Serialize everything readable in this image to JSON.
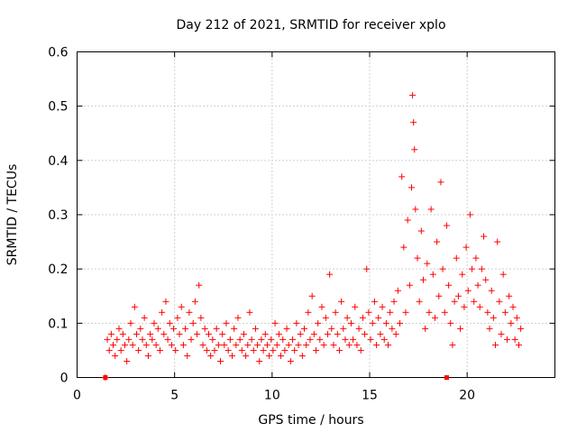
{
  "chart_data": {
    "type": "scatter",
    "title": "Day 212 of 2021, SRMTID for receiver xplo",
    "xlabel": "GPS time / hours",
    "ylabel": "SRMTID / TECUs",
    "xlim": [
      0,
      24.5
    ],
    "ylim": [
      0,
      0.6
    ],
    "xticks": [
      0,
      5,
      10,
      15,
      20
    ],
    "yticks": [
      0,
      0.1,
      0.2,
      0.3,
      0.4,
      0.5,
      0.6
    ],
    "xtick_labels": [
      "0",
      "5",
      "10",
      "15",
      "20"
    ],
    "ytick_labels": [
      "0",
      "0.1",
      "0.2",
      "0.3",
      "0.4",
      "0.5",
      "0.6"
    ],
    "grid": true,
    "marker": "+",
    "series": [
      {
        "name": "SRMTID",
        "color": "#ff0000",
        "points": [
          [
            1.45,
            0.0
          ],
          [
            1.55,
            0.07
          ],
          [
            1.65,
            0.05
          ],
          [
            1.75,
            0.08
          ],
          [
            1.85,
            0.06
          ],
          [
            1.95,
            0.04
          ],
          [
            2.05,
            0.07
          ],
          [
            2.15,
            0.09
          ],
          [
            2.25,
            0.05
          ],
          [
            2.35,
            0.08
          ],
          [
            2.45,
            0.06
          ],
          [
            2.55,
            0.03
          ],
          [
            2.65,
            0.07
          ],
          [
            2.75,
            0.1
          ],
          [
            2.85,
            0.06
          ],
          [
            2.95,
            0.13
          ],
          [
            3.05,
            0.08
          ],
          [
            3.15,
            0.05
          ],
          [
            3.25,
            0.09
          ],
          [
            3.35,
            0.07
          ],
          [
            3.45,
            0.11
          ],
          [
            3.55,
            0.06
          ],
          [
            3.65,
            0.04
          ],
          [
            3.75,
            0.08
          ],
          [
            3.85,
            0.07
          ],
          [
            3.95,
            0.1
          ],
          [
            4.05,
            0.06
          ],
          [
            4.15,
            0.09
          ],
          [
            4.25,
            0.05
          ],
          [
            4.35,
            0.12
          ],
          [
            4.45,
            0.08
          ],
          [
            4.55,
            0.14
          ],
          [
            4.65,
            0.07
          ],
          [
            4.75,
            0.1
          ],
          [
            4.85,
            0.06
          ],
          [
            4.95,
            0.09
          ],
          [
            5.05,
            0.05
          ],
          [
            5.15,
            0.11
          ],
          [
            5.25,
            0.08
          ],
          [
            5.35,
            0.13
          ],
          [
            5.45,
            0.06
          ],
          [
            5.55,
            0.09
          ],
          [
            5.65,
            0.04
          ],
          [
            5.75,
            0.12
          ],
          [
            5.85,
            0.07
          ],
          [
            5.95,
            0.1
          ],
          [
            6.05,
            0.14
          ],
          [
            6.15,
            0.08
          ],
          [
            6.25,
            0.17
          ],
          [
            6.35,
            0.11
          ],
          [
            6.45,
            0.06
          ],
          [
            6.55,
            0.09
          ],
          [
            6.65,
            0.05
          ],
          [
            6.75,
            0.08
          ],
          [
            6.85,
            0.04
          ],
          [
            6.95,
            0.07
          ],
          [
            7.05,
            0.05
          ],
          [
            7.15,
            0.09
          ],
          [
            7.25,
            0.06
          ],
          [
            7.35,
            0.03
          ],
          [
            7.45,
            0.08
          ],
          [
            7.55,
            0.06
          ],
          [
            7.65,
            0.1
          ],
          [
            7.75,
            0.05
          ],
          [
            7.85,
            0.07
          ],
          [
            7.95,
            0.04
          ],
          [
            8.05,
            0.09
          ],
          [
            8.15,
            0.06
          ],
          [
            8.25,
            0.11
          ],
          [
            8.35,
            0.07
          ],
          [
            8.45,
            0.05
          ],
          [
            8.55,
            0.08
          ],
          [
            8.65,
            0.04
          ],
          [
            8.75,
            0.06
          ],
          [
            8.85,
            0.12
          ],
          [
            8.95,
            0.07
          ],
          [
            9.05,
            0.05
          ],
          [
            9.15,
            0.09
          ],
          [
            9.25,
            0.06
          ],
          [
            9.35,
            0.03
          ],
          [
            9.45,
            0.07
          ],
          [
            9.55,
            0.05
          ],
          [
            9.65,
            0.08
          ],
          [
            9.75,
            0.06
          ],
          [
            9.85,
            0.04
          ],
          [
            9.95,
            0.07
          ],
          [
            10.05,
            0.05
          ],
          [
            10.15,
            0.1
          ],
          [
            10.25,
            0.06
          ],
          [
            10.35,
            0.08
          ],
          [
            10.45,
            0.04
          ],
          [
            10.55,
            0.07
          ],
          [
            10.65,
            0.05
          ],
          [
            10.75,
            0.09
          ],
          [
            10.85,
            0.06
          ],
          [
            10.95,
            0.03
          ],
          [
            11.05,
            0.07
          ],
          [
            11.15,
            0.05
          ],
          [
            11.25,
            0.1
          ],
          [
            11.35,
            0.06
          ],
          [
            11.45,
            0.08
          ],
          [
            11.55,
            0.04
          ],
          [
            11.65,
            0.09
          ],
          [
            11.75,
            0.06
          ],
          [
            11.85,
            0.12
          ],
          [
            11.95,
            0.07
          ],
          [
            12.05,
            0.15
          ],
          [
            12.15,
            0.08
          ],
          [
            12.25,
            0.05
          ],
          [
            12.35,
            0.1
          ],
          [
            12.45,
            0.07
          ],
          [
            12.55,
            0.13
          ],
          [
            12.65,
            0.06
          ],
          [
            12.75,
            0.11
          ],
          [
            12.85,
            0.08
          ],
          [
            12.95,
            0.19
          ],
          [
            13.05,
            0.09
          ],
          [
            13.15,
            0.06
          ],
          [
            13.25,
            0.12
          ],
          [
            13.35,
            0.08
          ],
          [
            13.45,
            0.05
          ],
          [
            13.55,
            0.14
          ],
          [
            13.65,
            0.09
          ],
          [
            13.75,
            0.07
          ],
          [
            13.85,
            0.11
          ],
          [
            13.95,
            0.06
          ],
          [
            14.05,
            0.1
          ],
          [
            14.15,
            0.07
          ],
          [
            14.25,
            0.13
          ],
          [
            14.35,
            0.06
          ],
          [
            14.45,
            0.09
          ],
          [
            14.55,
            0.05
          ],
          [
            14.65,
            0.11
          ],
          [
            14.75,
            0.08
          ],
          [
            14.85,
            0.2
          ],
          [
            14.95,
            0.12
          ],
          [
            15.05,
            0.07
          ],
          [
            15.15,
            0.1
          ],
          [
            15.25,
            0.14
          ],
          [
            15.35,
            0.06
          ],
          [
            15.45,
            0.11
          ],
          [
            15.55,
            0.08
          ],
          [
            15.65,
            0.13
          ],
          [
            15.75,
            0.07
          ],
          [
            15.85,
            0.1
          ],
          [
            15.95,
            0.06
          ],
          [
            16.05,
            0.12
          ],
          [
            16.15,
            0.09
          ],
          [
            16.25,
            0.14
          ],
          [
            16.35,
            0.08
          ],
          [
            16.45,
            0.16
          ],
          [
            16.55,
            0.1
          ],
          [
            16.65,
            0.37
          ],
          [
            16.75,
            0.24
          ],
          [
            16.85,
            0.12
          ],
          [
            16.95,
            0.29
          ],
          [
            17.05,
            0.17
          ],
          [
            17.15,
            0.35
          ],
          [
            17.2,
            0.52
          ],
          [
            17.25,
            0.47
          ],
          [
            17.3,
            0.42
          ],
          [
            17.35,
            0.31
          ],
          [
            17.45,
            0.22
          ],
          [
            17.55,
            0.14
          ],
          [
            17.65,
            0.27
          ],
          [
            17.75,
            0.18
          ],
          [
            17.85,
            0.09
          ],
          [
            17.95,
            0.21
          ],
          [
            18.05,
            0.12
          ],
          [
            18.15,
            0.31
          ],
          [
            18.25,
            0.19
          ],
          [
            18.35,
            0.11
          ],
          [
            18.45,
            0.25
          ],
          [
            18.55,
            0.15
          ],
          [
            18.65,
            0.36
          ],
          [
            18.75,
            0.2
          ],
          [
            18.85,
            0.12
          ],
          [
            18.95,
            0.28
          ],
          [
            19.05,
            0.17
          ],
          [
            19.15,
            0.1
          ],
          [
            19.25,
            0.06
          ],
          [
            19.35,
            0.14
          ],
          [
            19.45,
            0.22
          ],
          [
            19.55,
            0.15
          ],
          [
            19.65,
            0.09
          ],
          [
            19.75,
            0.19
          ],
          [
            19.85,
            0.13
          ],
          [
            19.95,
            0.24
          ],
          [
            20.05,
            0.16
          ],
          [
            20.15,
            0.3
          ],
          [
            20.25,
            0.2
          ],
          [
            20.35,
            0.14
          ],
          [
            20.45,
            0.22
          ],
          [
            20.55,
            0.17
          ],
          [
            20.65,
            0.13
          ],
          [
            20.75,
            0.2
          ],
          [
            20.85,
            0.26
          ],
          [
            20.95,
            0.18
          ],
          [
            21.05,
            0.12
          ],
          [
            21.15,
            0.09
          ],
          [
            21.25,
            0.16
          ],
          [
            21.35,
            0.11
          ],
          [
            21.45,
            0.06
          ],
          [
            21.55,
            0.25
          ],
          [
            21.65,
            0.14
          ],
          [
            21.75,
            0.08
          ],
          [
            21.85,
            0.19
          ],
          [
            21.95,
            0.12
          ],
          [
            22.05,
            0.07
          ],
          [
            22.15,
            0.15
          ],
          [
            22.25,
            0.1
          ],
          [
            22.35,
            0.13
          ],
          [
            22.45,
            0.07
          ],
          [
            22.55,
            0.11
          ],
          [
            22.65,
            0.06
          ],
          [
            22.75,
            0.09
          ]
        ]
      }
    ],
    "markers_on_axis": [
      [
        1.45,
        0.0
      ],
      [
        18.95,
        0.0
      ]
    ]
  }
}
